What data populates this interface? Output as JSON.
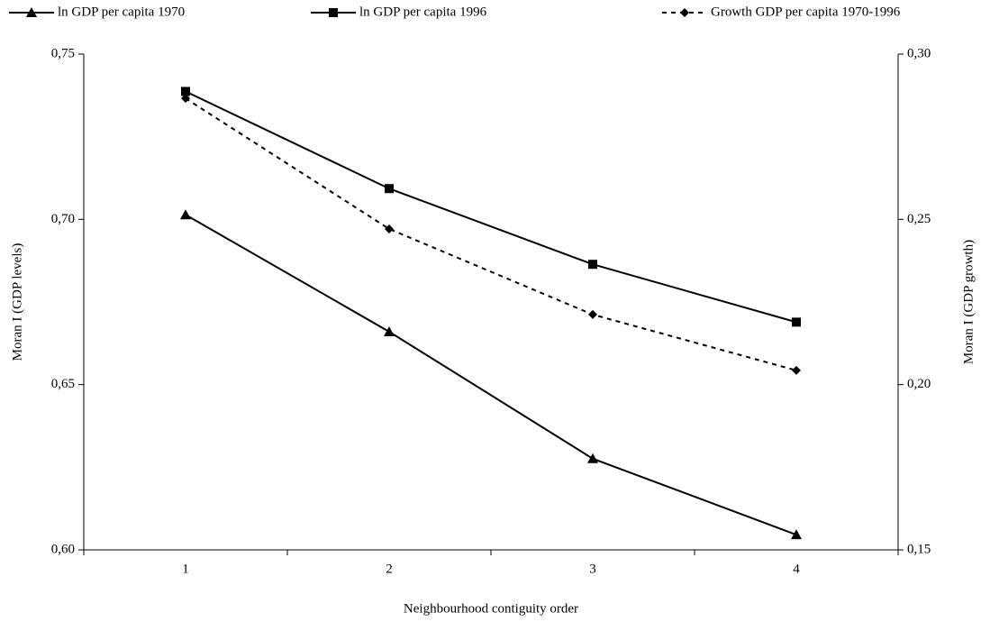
{
  "chart_data": {
    "type": "line",
    "x_label": "Neighbourhood contiguity order",
    "y_label": "Moran I (GDP levels)",
    "y2_label": "Moran I (GDP growth)",
    "categories": [
      "1",
      "2",
      "3",
      "4"
    ],
    "ylim": [
      0.6,
      0.75
    ],
    "yticks": [
      {
        "value": 0.6,
        "label": "0,60"
      },
      {
        "value": 0.65,
        "label": "0,65"
      },
      {
        "value": 0.7,
        "label": "0,70"
      },
      {
        "value": 0.75,
        "label": "0,75"
      }
    ],
    "y2lim": [
      0.15,
      0.3
    ],
    "y2ticks": [
      {
        "value": 0.15,
        "label": "0,15"
      },
      {
        "value": 0.2,
        "label": "0,20"
      },
      {
        "value": 0.25,
        "label": "0,25"
      },
      {
        "value": 0.3,
        "label": "0,30"
      }
    ],
    "legend": "top",
    "series": [
      {
        "name": "ln GDP per capita 1970",
        "color": "#000000",
        "marker": "triangle",
        "dash": false,
        "values": [
          0.7014,
          0.666,
          0.6276,
          0.6046
        ]
      },
      {
        "name": "ln GDP per capita 1996",
        "color": "#000000",
        "marker": "square",
        "dash": false,
        "values": [
          0.7387,
          0.7093,
          0.6864,
          0.6689
        ]
      },
      {
        "name": "Growth GDP per capita 1970-1996",
        "color": "#000000",
        "marker": "diamond",
        "dash": true,
        "axis": "y2",
        "values": [
          0.2866,
          0.2471,
          0.2212,
          0.2043
        ]
      }
    ]
  }
}
